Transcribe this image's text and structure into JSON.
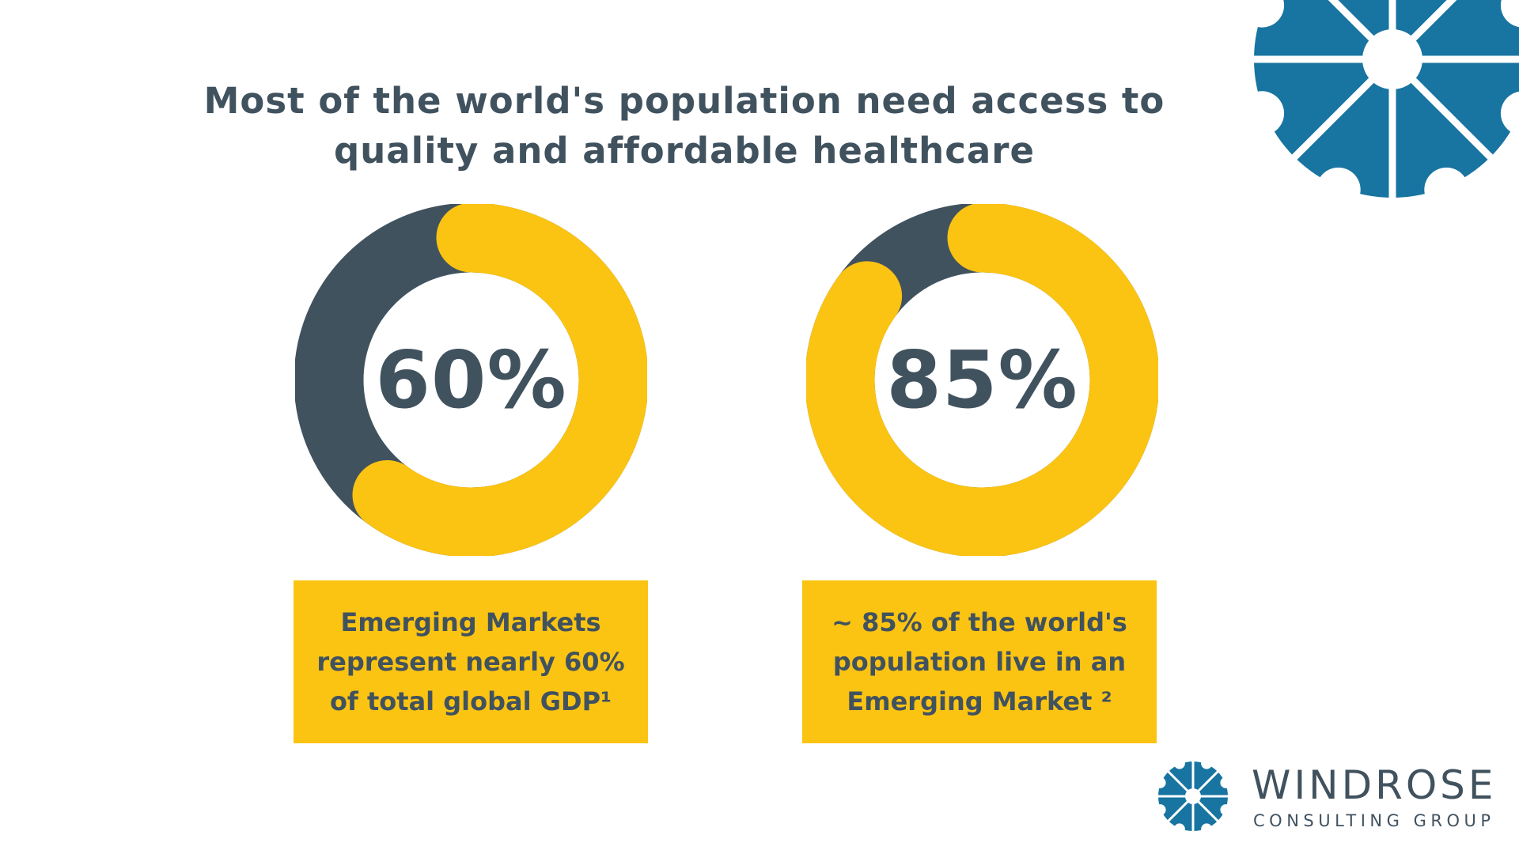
{
  "title": {
    "line1": "Most of the world's population need access to",
    "line2": "quality and affordable healthcare"
  },
  "colors": {
    "accent": "#fbc412",
    "dark": "#41525f",
    "brand_blue": "#1874a0",
    "background": "#ffffff"
  },
  "chart_data": [
    {
      "type": "pie",
      "style": "donut",
      "value_label": "60%",
      "values": [
        60,
        40
      ],
      "colors": [
        "#fbc412",
        "#41525f"
      ],
      "caption": [
        "Emerging Markets",
        "represent nearly 60%",
        "of total global GDP¹"
      ]
    },
    {
      "type": "pie",
      "style": "donut",
      "value_label": "85%",
      "values": [
        85,
        15
      ],
      "colors": [
        "#fbc412",
        "#41525f"
      ],
      "caption": [
        "~ 85% of the world's",
        "population live in an",
        "Emerging Market ²"
      ]
    }
  ],
  "logo": {
    "icon": "windrose-compass-icon",
    "name": "WINDROSE",
    "sub": "CONSULTING GROUP"
  }
}
